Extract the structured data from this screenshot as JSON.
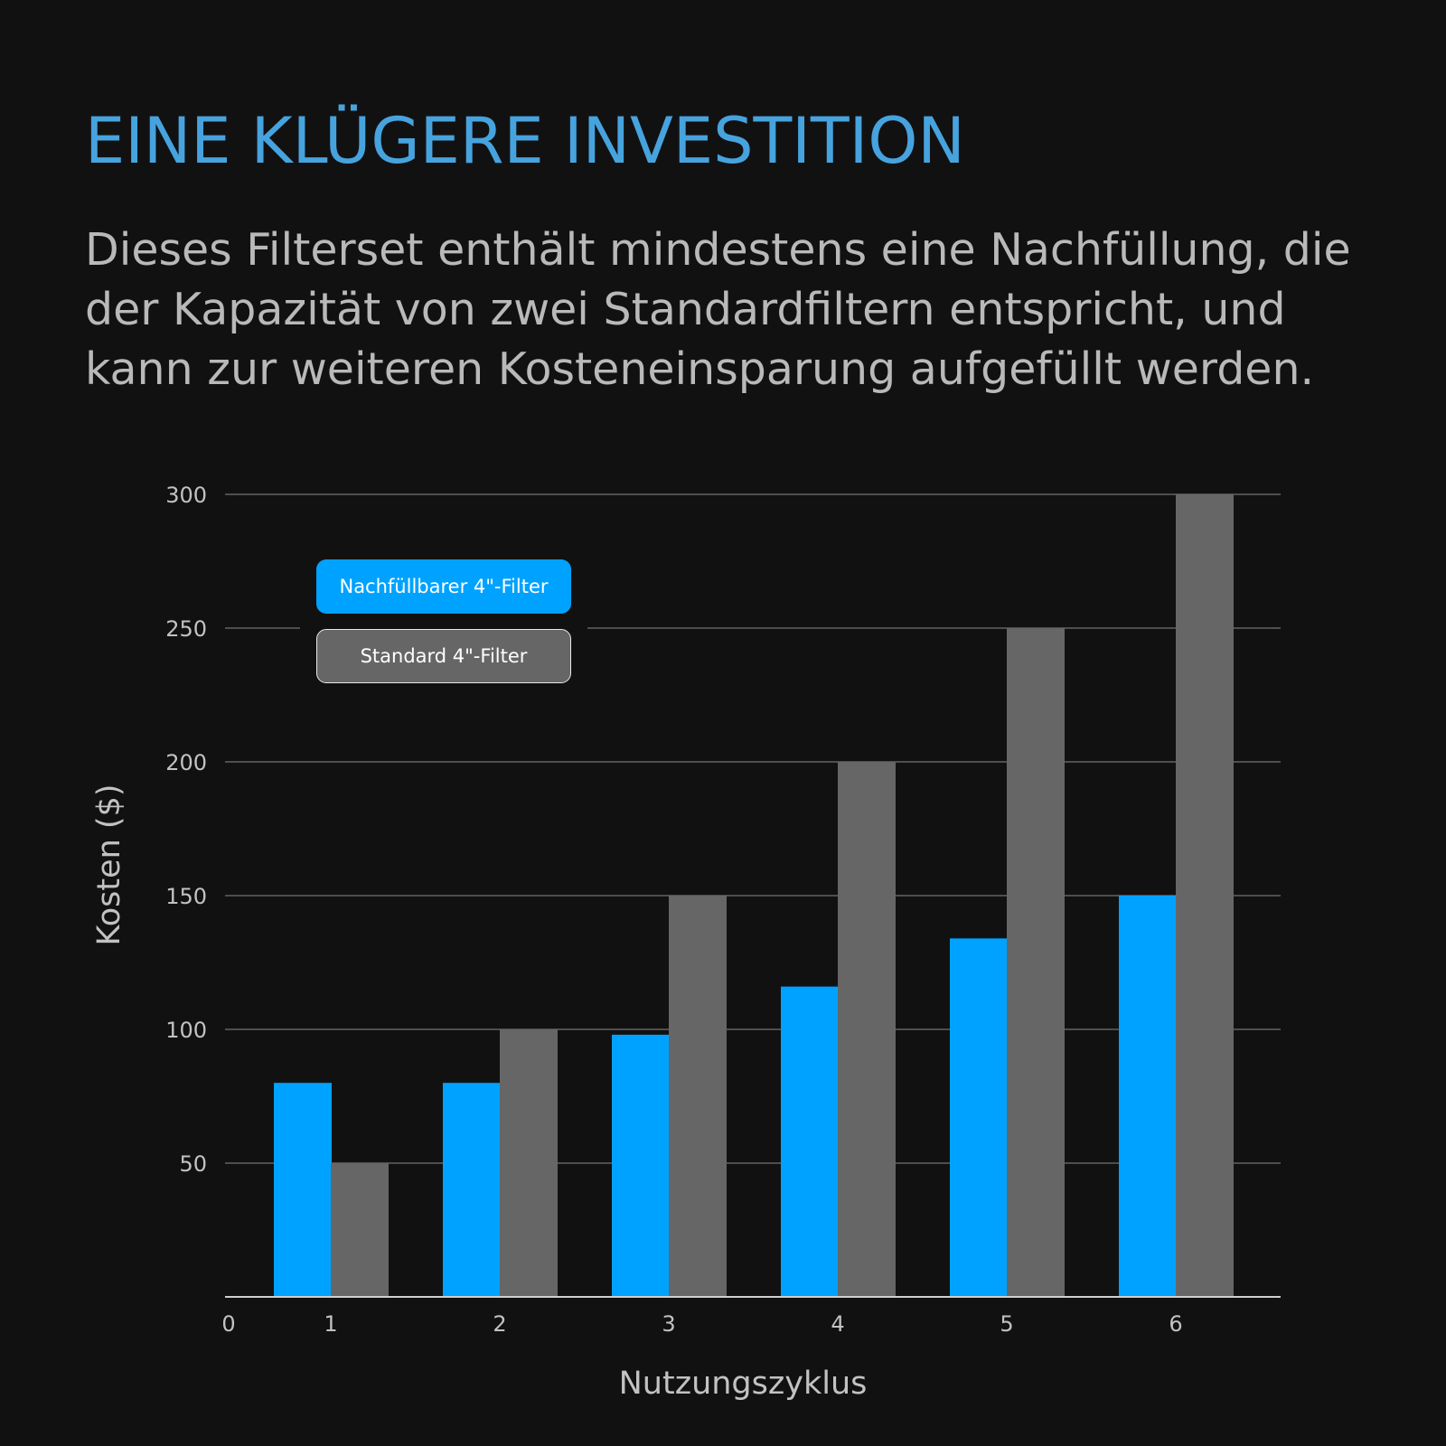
{
  "header": {
    "title": "EINE KLÜGERE INVESTITION",
    "subtitle": "Dieses Filterset enthält mindestens eine Nachfüllung, die der Kapazität von zwei Standardfiltern entspricht, und kann zur weiteren Kosteneinsparung aufgefüllt werden."
  },
  "colors": {
    "background": "#121112",
    "title": "#46a3de",
    "grid": "#8a8a8a",
    "axis": "#cfcfcf",
    "tick_text": "#c2c2c2"
  },
  "chart_data": {
    "type": "bar",
    "xlabel": "Nutzungszyklus",
    "ylabel": "Kosten ($)",
    "categories": [
      "1",
      "2",
      "3",
      "4",
      "5",
      "6"
    ],
    "x_origin_label": "0",
    "yticks": [
      50,
      100,
      150,
      200,
      250,
      300
    ],
    "ylim": [
      0,
      300
    ],
    "grid": true,
    "legend_position": "top-left",
    "series": [
      {
        "name": "Nachfüllbarer 4\"-Filter",
        "color": "#00a2ff",
        "values": [
          80,
          80,
          98,
          116,
          134,
          150
        ]
      },
      {
        "name": "Standard 4\"-Filter",
        "color": "#666666",
        "values": [
          50,
          100,
          150,
          200,
          250,
          300
        ]
      }
    ]
  }
}
